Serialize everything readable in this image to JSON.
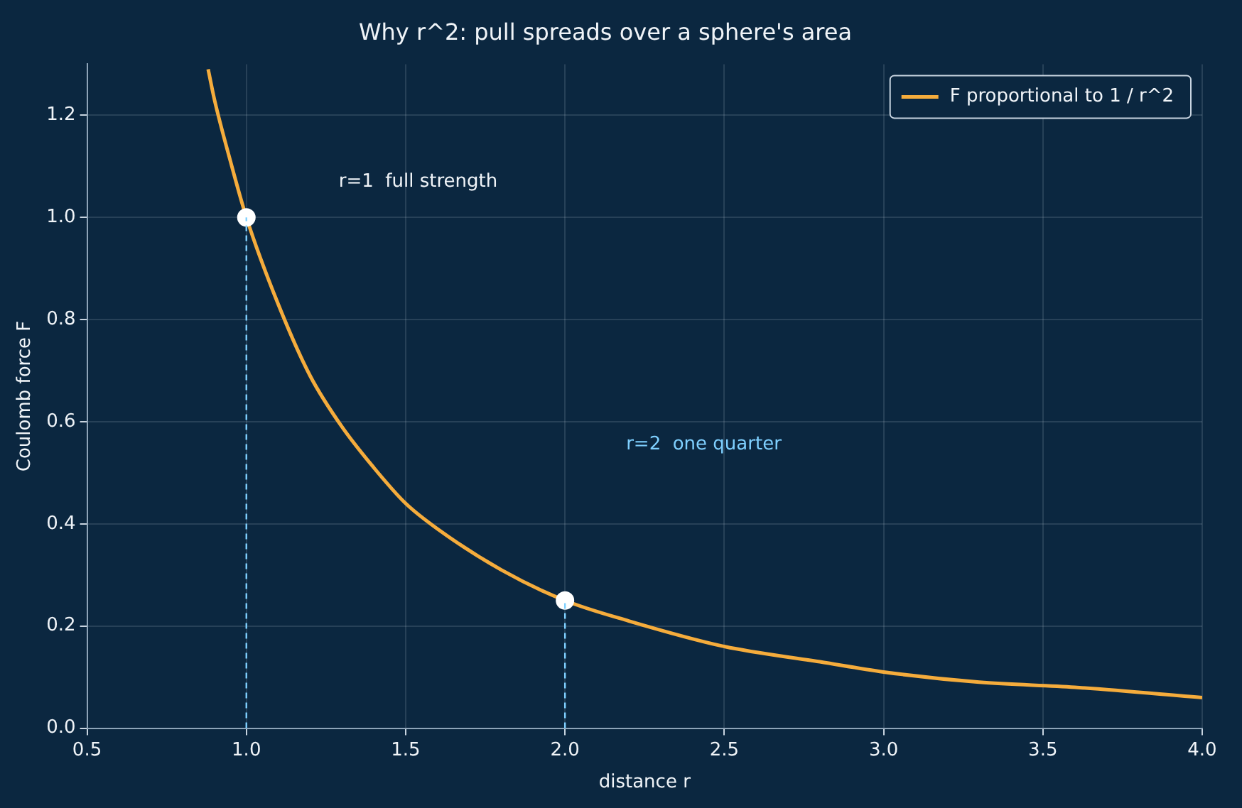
{
  "chart_data": {
    "type": "line",
    "title": "Why r^2: pull spreads over a sphere's area",
    "xlabel": "distance r",
    "ylabel": "Coulomb force F",
    "xlim": [
      0.5,
      4
    ],
    "ylim": [
      0,
      1.3
    ],
    "xticks": [
      0.5,
      {
        "value": 1,
        "label": "1.0"
      },
      1.5,
      {
        "value": 2,
        "label": "2.0"
      },
      2.5,
      {
        "value": 3,
        "label": "3.0"
      },
      3.5,
      {
        "value": 4,
        "label": "4.0"
      }
    ],
    "yticks": [
      {
        "value": 0,
        "label": "0.0"
      },
      0.2,
      0.4,
      0.6,
      0.8,
      {
        "value": 1,
        "label": "1.0"
      },
      1.2
    ],
    "grid": true,
    "legend": "top right",
    "marker": "none",
    "line_style": "solid",
    "series": [
      {
        "name": "F proportional to 1 / r^2",
        "color": "#f5ac3c",
        "x": [
          0.88,
          0.9,
          0.95,
          1.0,
          1.1,
          1.2,
          1.3,
          1.4,
          1.5,
          1.6,
          1.8,
          2.0,
          2.2,
          2.5,
          2.8,
          3.0,
          3.3,
          3.6,
          4.0
        ],
        "values": [
          1.29,
          1.23,
          1.11,
          1.0,
          0.83,
          0.69,
          0.59,
          0.51,
          0.44,
          0.39,
          0.31,
          0.25,
          0.21,
          0.16,
          0.13,
          0.11,
          0.09,
          0.08,
          0.06
        ]
      },
      {
        "type": "scatter",
        "color": "#ffffff",
        "marker": "circle",
        "x": [
          1,
          2
        ],
        "values": [
          1,
          0.25
        ]
      }
    ],
    "ref_lines": [
      {
        "axis": "x",
        "value": 1,
        "color": "#7fd0ff",
        "line_style": "dashed"
      },
      {
        "axis": "x",
        "value": 2,
        "color": "#7fd0ff",
        "line_style": "dashed"
      }
    ],
    "annotations": [
      "r=1  full strength",
      "r=2  one quarter"
    ]
  }
}
